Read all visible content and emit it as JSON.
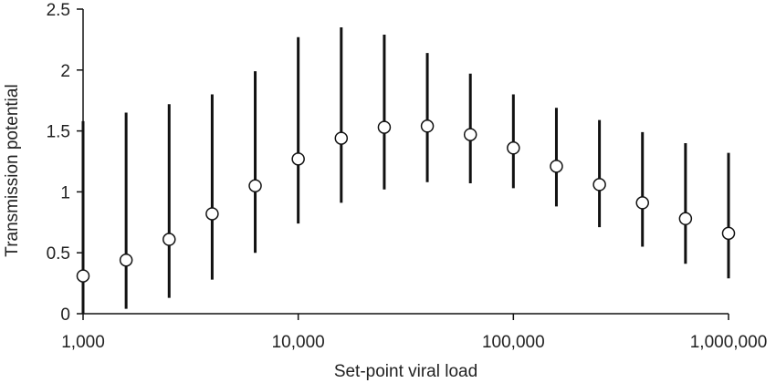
{
  "chart_data": {
    "type": "scatter",
    "xlabel": "Set-point viral load",
    "ylabel": "Transmission potential",
    "xscale": "log",
    "xlim": [
      1000,
      1000000
    ],
    "ylim": [
      0,
      2.5
    ],
    "grid": false,
    "x_ticks": [
      1000,
      10000,
      100000,
      1000000
    ],
    "x_tick_labels": [
      "1,000",
      "10,000",
      "100,000",
      "1,000,000"
    ],
    "y_ticks": [
      0,
      0.5,
      1,
      1.5,
      2,
      2.5
    ],
    "y_tick_labels": [
      "0",
      "0.5",
      "1",
      "1.5",
      "2",
      "2.5"
    ],
    "marker": "open-circle",
    "points": [
      {
        "x": 1000,
        "y": 0.31,
        "lower": 0.0,
        "upper": 1.58
      },
      {
        "x": 1585,
        "y": 0.44,
        "lower": 0.04,
        "upper": 1.65
      },
      {
        "x": 2512,
        "y": 0.61,
        "lower": 0.13,
        "upper": 1.72
      },
      {
        "x": 3981,
        "y": 0.82,
        "lower": 0.28,
        "upper": 1.8
      },
      {
        "x": 6310,
        "y": 1.05,
        "lower": 0.5,
        "upper": 1.99
      },
      {
        "x": 10000,
        "y": 1.27,
        "lower": 0.74,
        "upper": 2.27
      },
      {
        "x": 15849,
        "y": 1.44,
        "lower": 0.91,
        "upper": 2.35
      },
      {
        "x": 25119,
        "y": 1.53,
        "lower": 1.02,
        "upper": 2.29
      },
      {
        "x": 39811,
        "y": 1.54,
        "lower": 1.08,
        "upper": 2.14
      },
      {
        "x": 63096,
        "y": 1.47,
        "lower": 1.07,
        "upper": 1.97
      },
      {
        "x": 100000,
        "y": 1.36,
        "lower": 1.03,
        "upper": 1.8
      },
      {
        "x": 158489,
        "y": 1.21,
        "lower": 0.88,
        "upper": 1.69
      },
      {
        "x": 251189,
        "y": 1.06,
        "lower": 0.71,
        "upper": 1.59
      },
      {
        "x": 398107,
        "y": 0.91,
        "lower": 0.55,
        "upper": 1.49
      },
      {
        "x": 630957,
        "y": 0.78,
        "lower": 0.41,
        "upper": 1.4
      },
      {
        "x": 1000000,
        "y": 0.66,
        "lower": 0.29,
        "upper": 1.32
      }
    ]
  }
}
